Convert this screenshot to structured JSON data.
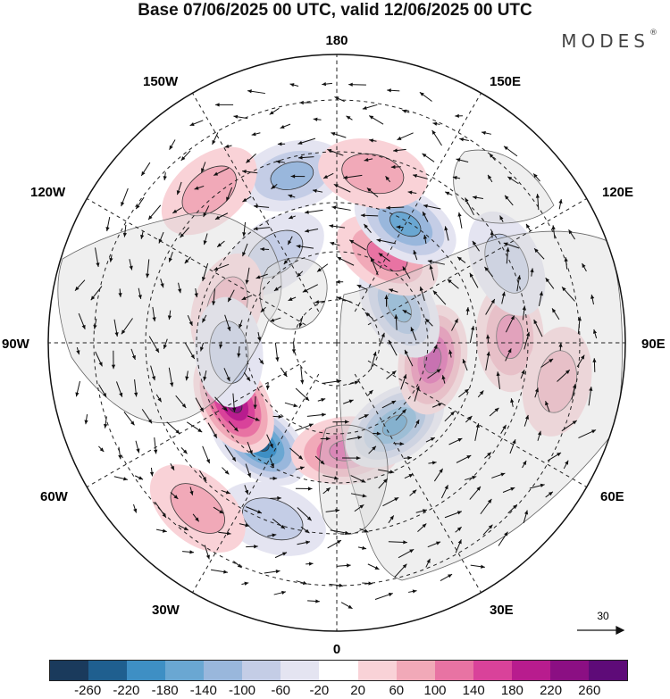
{
  "title": "Base 07/06/2025 00 UTC, valid 12/06/2025 00 UTC",
  "brand": "MODES",
  "brand_mark": "®",
  "longitude_labels": {
    "top": "180",
    "bottom": "0",
    "left": "90W",
    "right": "90E",
    "upper_left": "150W",
    "upper_right": "150E",
    "mid_left": "120W",
    "mid_right": "120E",
    "lower_left": "60W",
    "lower_right": "60E",
    "bottom_left": "30W",
    "bottom_right": "30E"
  },
  "reference_vector": {
    "value": "30"
  },
  "colorbar": {
    "colors": [
      "#1a3a5c",
      "#1f5f8f",
      "#3e8fc4",
      "#6aa7d2",
      "#99b7dc",
      "#c4cde6",
      "#e4e4f1",
      "#ffffff",
      "#f9d2d7",
      "#f1a9b8",
      "#e873a3",
      "#d9429a",
      "#b81c8e",
      "#8b0f83",
      "#5e0b78"
    ],
    "ticks": [
      "-260",
      "-220",
      "-180",
      "-140",
      "-100",
      "-60",
      "-20",
      "20",
      "60",
      "100",
      "140",
      "180",
      "220",
      "260"
    ]
  },
  "anomaly_blobs": [
    {
      "id": "neg-atlantic",
      "lat": 55,
      "lon": -38,
      "value": -240
    },
    {
      "id": "pos-greenland-sea",
      "lat": 57,
      "lon": -60,
      "value": 230
    },
    {
      "id": "pos-europe",
      "lat": 60,
      "lon": 5,
      "value": 160
    },
    {
      "id": "neg-west-siberia",
      "lat": 62,
      "lon": 35,
      "value": -200
    },
    {
      "id": "pos-central-siberia",
      "lat": 63,
      "lon": 80,
      "value": 200
    },
    {
      "id": "pos-mongolia",
      "lat": 42,
      "lon": 92,
      "value": 100
    },
    {
      "id": "neg-east-siberia",
      "lat": 70,
      "lon": 120,
      "value": -150
    },
    {
      "id": "pos-kamchatka",
      "lat": 62,
      "lon": 150,
      "value": 100
    },
    {
      "id": "neg-okhotsk",
      "lat": 52,
      "lon": 150,
      "value": -140
    },
    {
      "id": "neg-north-pacific",
      "lat": 42,
      "lon": -165,
      "value": -120
    },
    {
      "id": "pos-north-pacific",
      "lat": 42,
      "lon": 168,
      "value": 90
    },
    {
      "id": "neg-alaska",
      "lat": 60,
      "lon": -145,
      "value": -80
    },
    {
      "id": "pos-canada",
      "lat": 58,
      "lon": -108,
      "value": 60
    },
    {
      "id": "neg-hudson",
      "lat": 60,
      "lon": -85,
      "value": -90
    },
    {
      "id": "pos-west-pacific",
      "lat": 35,
      "lon": -140,
      "value": 70
    },
    {
      "id": "neg-china",
      "lat": 38,
      "lon": 115,
      "value": -60
    },
    {
      "id": "neg-mid-atlantic",
      "lat": 38,
      "lon": -20,
      "value": -70
    },
    {
      "id": "pos-subtropical-atlantic",
      "lat": 30,
      "lon": -40,
      "value": 80
    },
    {
      "id": "pos-far-east",
      "lat": 28,
      "lon": 80,
      "value": 60
    }
  ]
}
